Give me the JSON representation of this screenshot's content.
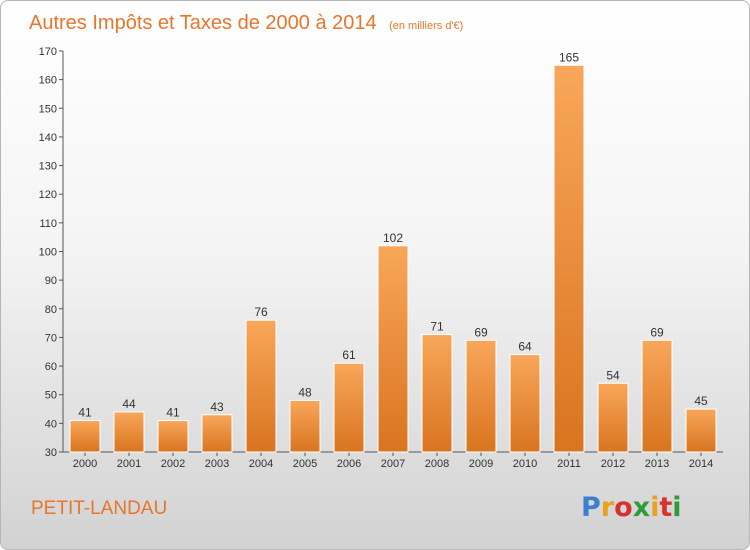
{
  "title": "Autres Impôts et Taxes de 2000 à 2014",
  "subtitle": "(en milliers d'€)",
  "commune": "PETIT-LANDAU",
  "logo": {
    "letters": [
      "P",
      "r",
      "o",
      "x",
      "i",
      "t",
      "i"
    ],
    "colors": [
      "#3a7fd0",
      "#e8a21c",
      "#d7322c",
      "#2f9c3c",
      "#e8a21c",
      "#d7322c",
      "#2f9c3c"
    ]
  },
  "colors": {
    "bar_light": "#f8a75a",
    "bar_dark": "#d9741f",
    "title": "#e9752b"
  },
  "chart_data": {
    "type": "bar",
    "categories": [
      "2000",
      "2001",
      "2002",
      "2003",
      "2004",
      "2005",
      "2006",
      "2007",
      "2008",
      "2009",
      "2010",
      "2011",
      "2012",
      "2013",
      "2014"
    ],
    "values": [
      41,
      44,
      41,
      43,
      76,
      48,
      61,
      102,
      71,
      69,
      64,
      165,
      54,
      69,
      45
    ],
    "title": "Autres Impôts et Taxes de 2000 à 2014",
    "subtitle": "(en milliers d'€)",
    "xlabel": "",
    "ylabel": "",
    "ylim": [
      30,
      170
    ],
    "yticks": [
      30,
      40,
      50,
      60,
      70,
      80,
      90,
      100,
      110,
      120,
      130,
      140,
      150,
      160,
      170
    ],
    "grid": false,
    "legend": "none"
  }
}
